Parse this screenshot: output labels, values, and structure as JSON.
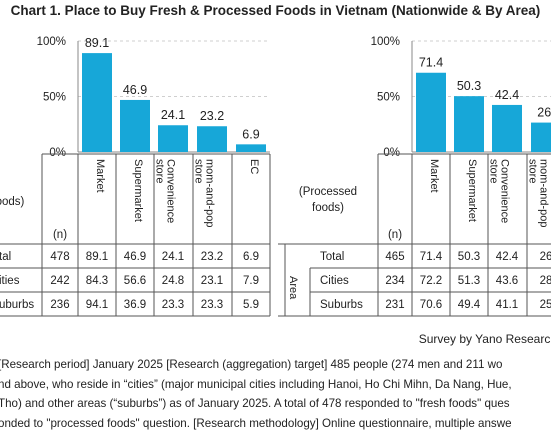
{
  "title": "Chart 1. Place to Buy Fresh & Processed Foods in Vietnam (Nationwide & By Area)",
  "credit": "Survey by Yano Research",
  "footnote_lines": [
    "[Research period] January 2025 [Research (aggregation) target] 485 people (274 men and 211 wo",
    "nd above, who reside in “cities” (major municipal cities including Hanoi, Ho Chi Mihn, Da Nang, Hue,",
    "Tho) and other areas (“suburbs”) as of January 2025. A total of 478 responded to \"fresh foods\" ques",
    "onded to \"processed foods\" question. [Research methodology] Online questionnaire, multiple answe"
  ],
  "colors": {
    "bar": "#17a7d8",
    "grid": "#cfcfcf",
    "table_border": "#555555",
    "text": "#222222"
  },
  "chart_data": [
    {
      "type": "bar",
      "name": "fresh",
      "row_header": "oods)",
      "n_label": "(n)",
      "area_label": "",
      "categories": [
        "Market",
        "Supermarket",
        "Convenience store",
        "mom-and-pop store",
        "EC"
      ],
      "values": [
        89.1,
        46.9,
        24.1,
        23.2,
        6.9
      ],
      "y_ticks": [
        "0%",
        "50%",
        "100%"
      ],
      "ylim": [
        0,
        100
      ],
      "rows": [
        {
          "label": "tal",
          "n": "478",
          "values": [
            "89.1",
            "46.9",
            "24.1",
            "23.2",
            "6.9"
          ]
        },
        {
          "label": "ities",
          "n": "242",
          "values": [
            "84.3",
            "56.6",
            "24.8",
            "23.1",
            "7.9"
          ]
        },
        {
          "label": "uburbs",
          "n": "236",
          "values": [
            "94.1",
            "36.9",
            "23.3",
            "23.3",
            "5.9"
          ]
        }
      ]
    },
    {
      "type": "bar",
      "name": "processed",
      "row_header": "(Processed foods)",
      "n_label": "(n)",
      "area_label": "Area",
      "categories": [
        "Market",
        "Supermarket",
        "Convenience store",
        "mom-and-pop store"
      ],
      "values": [
        71.4,
        50.3,
        42.4,
        26.5
      ],
      "value_labels": [
        "71.4",
        "50.3",
        "42.4",
        "26."
      ],
      "y_ticks": [
        "0%",
        "50%",
        "100%"
      ],
      "ylim": [
        0,
        100
      ],
      "rows": [
        {
          "label": "Total",
          "n": "465",
          "values": [
            "71.4",
            "50.3",
            "42.4",
            "26"
          ]
        },
        {
          "label": "Cities",
          "n": "234",
          "values": [
            "72.2",
            "51.3",
            "43.6",
            "28"
          ]
        },
        {
          "label": "Suburbs",
          "n": "231",
          "values": [
            "70.6",
            "49.4",
            "41.1",
            "25"
          ]
        }
      ]
    }
  ]
}
